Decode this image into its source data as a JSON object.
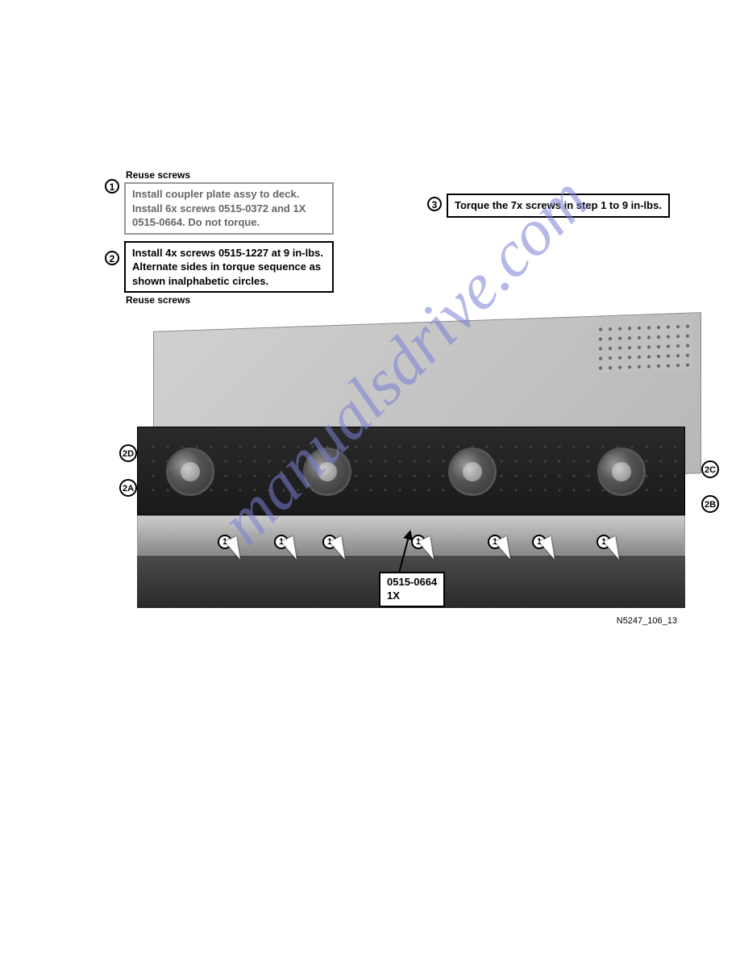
{
  "callouts": {
    "reuse_top": "Reuse screws",
    "reuse_bottom": "Reuse screws",
    "step1_num": "1",
    "step1_text": "Install coupler plate assy to deck.  Install 6x screws 0515-0372 and 1X 0515-0664.  Do not torque.",
    "step2_num": "2",
    "step2_text": "Install 4x screws 0515-1227 at 9 in-lbs.  Alternate sides in torque sequence as shown inalphabetic circles.",
    "step3_num": "3",
    "step3_text": "Torque the 7x screws in step 1 to 9 in-lbs."
  },
  "markers": {
    "m2d": "2D",
    "m2a": "2A",
    "m2c": "2C",
    "m2b": "2B"
  },
  "arrows": {
    "num": "1",
    "positions": [
      60,
      130,
      190,
      300,
      395,
      450,
      530
    ]
  },
  "part_label": {
    "line1": "0515-0664",
    "line2": "1X"
  },
  "figure_id": "N5247_106_13",
  "watermark": "manualsdrive.com",
  "colors": {
    "box_grey": "#999999",
    "text_grey": "#666666",
    "black": "#000000",
    "chassis": "#c0c0c0",
    "plate": "#1a1a1a",
    "watermark": "#7b7fd6"
  }
}
